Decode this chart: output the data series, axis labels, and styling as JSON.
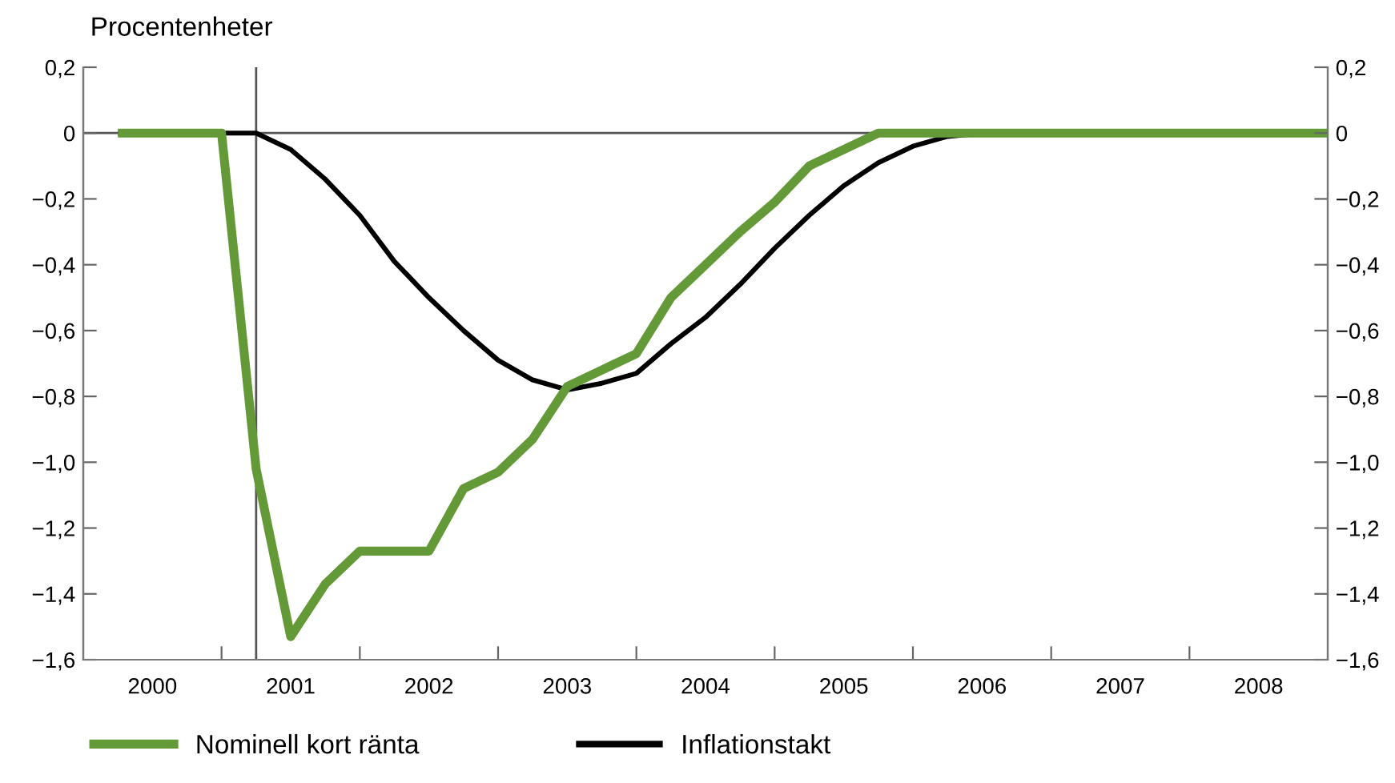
{
  "chart_data": {
    "type": "line",
    "ylabel": "Procentenheter",
    "x": [
      2000.25,
      2000.5,
      2000.75,
      2001.0,
      2001.25,
      2001.5,
      2001.75,
      2002.0,
      2002.25,
      2002.5,
      2002.75,
      2003.0,
      2003.25,
      2003.5,
      2003.75,
      2004.0,
      2004.25,
      2004.5,
      2004.75,
      2005.0,
      2005.25,
      2005.5,
      2005.75,
      2006.0,
      2006.25,
      2006.5,
      2006.75,
      2007.0,
      2007.25,
      2007.5,
      2007.75,
      2008.0,
      2008.25,
      2008.5,
      2008.75,
      2009.0
    ],
    "series": [
      {
        "name": "Nominell kort ränta",
        "color": "#639a37",
        "values": [
          0,
          0,
          0,
          0,
          -1.02,
          -1.53,
          -1.37,
          -1.27,
          -1.27,
          -1.27,
          -1.08,
          -1.03,
          -0.93,
          -0.77,
          -0.72,
          -0.67,
          -0.5,
          -0.4,
          -0.3,
          -0.21,
          -0.1,
          -0.05,
          0,
          0,
          0,
          0,
          0,
          0,
          0,
          0,
          0,
          0,
          0,
          0,
          0,
          0
        ]
      },
      {
        "name": "Inflationstakt",
        "color": "#000000",
        "values": [
          0,
          0,
          0,
          0,
          0,
          -0.05,
          -0.14,
          -0.25,
          -0.39,
          -0.5,
          -0.6,
          -0.69,
          -0.75,
          -0.78,
          -0.76,
          -0.73,
          -0.64,
          -0.56,
          -0.46,
          -0.35,
          -0.25,
          -0.16,
          -0.09,
          -0.04,
          -0.01,
          0,
          0,
          0,
          0,
          0,
          0,
          0,
          0,
          0,
          0,
          0
        ]
      }
    ],
    "xlim": [
      2000,
      2009
    ],
    "xticks": [
      {
        "value": 2000.5,
        "label": "2000"
      },
      {
        "value": 2001,
        "label": null
      },
      {
        "value": 2001.5,
        "label": "2001"
      },
      {
        "value": 2002,
        "label": null
      },
      {
        "value": 2002.5,
        "label": "2002"
      },
      {
        "value": 2003,
        "label": null
      },
      {
        "value": 2003.5,
        "label": "2003"
      },
      {
        "value": 2004,
        "label": null
      },
      {
        "value": 2004.5,
        "label": "2004"
      },
      {
        "value": 2005,
        "label": null
      },
      {
        "value": 2005.5,
        "label": "2005"
      },
      {
        "value": 2006,
        "label": null
      },
      {
        "value": 2006.5,
        "label": "2006"
      },
      {
        "value": 2007,
        "label": null
      },
      {
        "value": 2007.5,
        "label": "2007"
      },
      {
        "value": 2008,
        "label": null
      },
      {
        "value": 2008.5,
        "label": "2008"
      }
    ],
    "ylim": [
      -1.6,
      0.2
    ],
    "yticks": [
      {
        "value": 0.2,
        "label": "0,2"
      },
      {
        "value": 0,
        "label": "0"
      },
      {
        "value": -0.2,
        "label": "−0,2"
      },
      {
        "value": -0.4,
        "label": "−0,4"
      },
      {
        "value": -0.6,
        "label": "−0,6"
      },
      {
        "value": -0.8,
        "label": "−0,8"
      },
      {
        "value": -1.0,
        "label": "−1,0"
      },
      {
        "value": -1.2,
        "label": "−1,2"
      },
      {
        "value": -1.4,
        "label": "−1,4"
      },
      {
        "value": -1.6,
        "label": "−1,6"
      }
    ],
    "y2lim": [
      -1.6,
      0.2
    ],
    "y2ticks": [
      {
        "value": 0.2,
        "label": "0,2"
      },
      {
        "value": 0,
        "label": "0"
      },
      {
        "value": -0.2,
        "label": "−0,2"
      },
      {
        "value": -0.4,
        "label": "−0,4"
      },
      {
        "value": -0.6,
        "label": "−0,6"
      },
      {
        "value": -0.8,
        "label": "−0,8"
      },
      {
        "value": -1.0,
        "label": "−1,0"
      },
      {
        "value": -1.2,
        "label": "−1,2"
      },
      {
        "value": -1.4,
        "label": "−1,4"
      },
      {
        "value": -1.6,
        "label": "−1,6"
      }
    ],
    "ref_lines": [
      {
        "axis": "y",
        "value": 0,
        "color": "#555555"
      },
      {
        "axis": "x",
        "value": 2001.25,
        "color": "#555555"
      }
    ],
    "grid": false,
    "legend": "bottom",
    "marker": "none",
    "line_style": "solid"
  }
}
